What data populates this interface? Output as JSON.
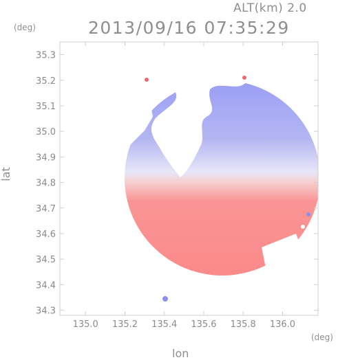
{
  "header": {
    "altitude_label": "ALT(km) 2.0",
    "timestamp": "2013/09/16 07:35:29"
  },
  "axes": {
    "y_unit": "(deg)",
    "x_unit": "(deg)",
    "x_label": "lon",
    "y_label": "lat",
    "x_ticks": [
      "135.0",
      "135.2",
      "135.4",
      "135.6",
      "135.8",
      "136.0"
    ],
    "y_ticks": [
      "35.3",
      "35.2",
      "35.1",
      "35.0",
      "34.9",
      "34.8",
      "34.7",
      "34.6",
      "34.5",
      "34.4",
      "34.3"
    ],
    "x_range": [
      134.87,
      136.18
    ],
    "y_range": [
      34.28,
      35.35
    ]
  },
  "radar": {
    "center_lon": 135.52,
    "center_lat": 34.82,
    "colors": {
      "approaching": "#8a8ef0",
      "receding": "#fa8c8c",
      "grid": "#cfcfcf"
    }
  }
}
